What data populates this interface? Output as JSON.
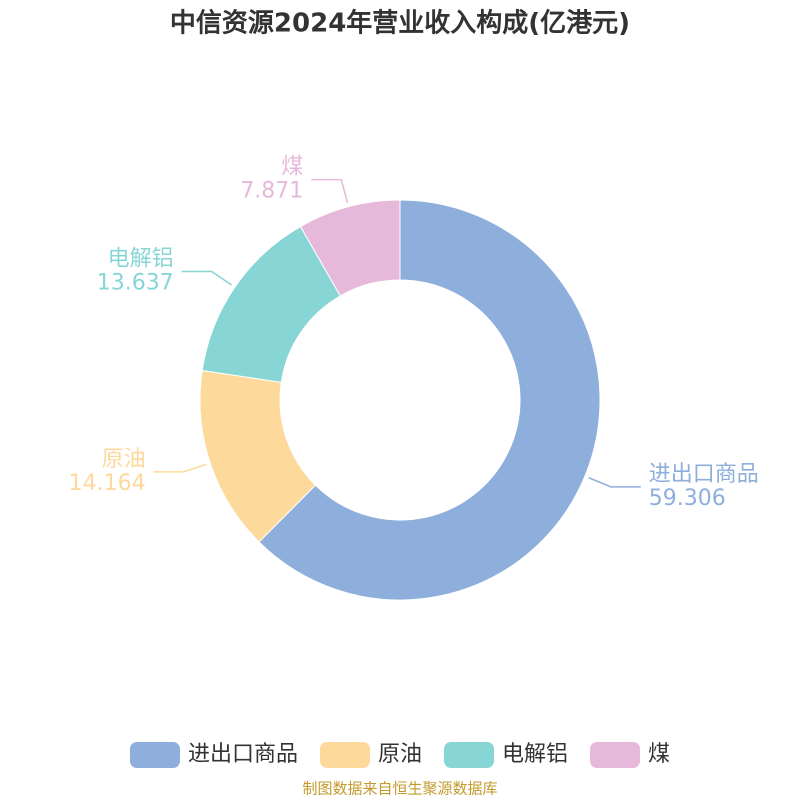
{
  "chart_data": {
    "type": "donut",
    "title": "中信资源2024年营业收入构成(亿港元)",
    "categories": [
      "进出口商品",
      "原油",
      "电解铝",
      "煤"
    ],
    "values": [
      59.306,
      14.164,
      13.637,
      7.871
    ],
    "colors": [
      "#8eaedb",
      "#fdd99b",
      "#88d5d6",
      "#e6b8d9"
    ],
    "legend": "bottom",
    "source": "制图数据来自恒生聚源数据库"
  }
}
